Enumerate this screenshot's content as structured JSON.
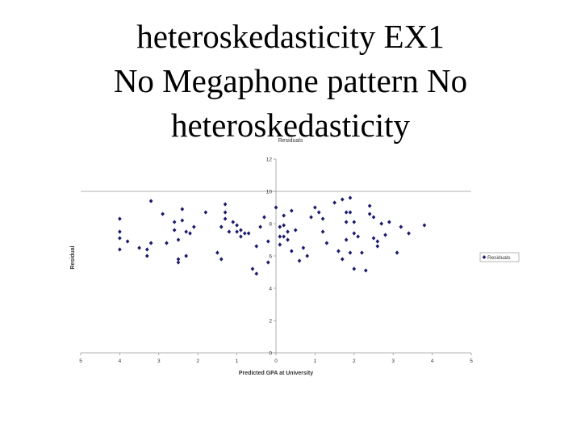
{
  "slide": {
    "title_lines": [
      "heteroskedasticity EX1",
      "No Megaphone pattern No",
      "heteroskedasticity"
    ]
  },
  "chart_data": {
    "type": "scatter",
    "title": "Residuals",
    "xlabel": "Predicted GPA at University",
    "ylabel": "Residual",
    "xlim": [
      -5,
      5
    ],
    "ylim": [
      0,
      12
    ],
    "x_ticks": [
      -5,
      -4,
      -3,
      -2,
      -1,
      0,
      1,
      2,
      3,
      4,
      5
    ],
    "x_tick_labels": [
      "5",
      "4",
      "3",
      "2",
      "1",
      "0",
      "1",
      "2",
      "3",
      "4",
      "5"
    ],
    "y_ticks": [
      0,
      2,
      4,
      6,
      8,
      10,
      12
    ],
    "y_tick_labels": [
      "0",
      "2",
      "4",
      "6",
      "8",
      "10",
      "12"
    ],
    "reference_line_y": 10,
    "grid": false,
    "legend_position": "right",
    "series": [
      {
        "name": "Residuals",
        "color": "#1a1a6e",
        "marker": "diamond",
        "points": [
          [
            -4.0,
            8.3
          ],
          [
            -4.0,
            7.1
          ],
          [
            -3.8,
            6.9
          ],
          [
            -4.0,
            6.4
          ],
          [
            -3.5,
            6.5
          ],
          [
            -3.2,
            6.8
          ],
          [
            -3.3,
            6.4
          ],
          [
            -3.3,
            6.0
          ],
          [
            -3.2,
            9.4
          ],
          [
            -2.9,
            8.6
          ],
          [
            -2.8,
            6.8
          ],
          [
            -2.6,
            8.1
          ],
          [
            -2.6,
            7.6
          ],
          [
            -2.5,
            7.0
          ],
          [
            -2.5,
            5.8
          ],
          [
            -2.5,
            5.6
          ],
          [
            -2.4,
            8.9
          ],
          [
            -2.4,
            8.2
          ],
          [
            -2.3,
            7.5
          ],
          [
            -2.2,
            7.4
          ],
          [
            -2.3,
            6.0
          ],
          [
            -2.1,
            7.8
          ],
          [
            -1.8,
            8.7
          ],
          [
            -1.5,
            6.2
          ],
          [
            -1.4,
            5.8
          ],
          [
            -1.3,
            9.2
          ],
          [
            -1.3,
            8.7
          ],
          [
            -1.3,
            8.3
          ],
          [
            -1.4,
            7.8
          ],
          [
            -1.2,
            7.5
          ],
          [
            -1.1,
            8.1
          ],
          [
            -1.0,
            7.9
          ],
          [
            -1.0,
            7.5
          ],
          [
            -0.9,
            7.6
          ],
          [
            -0.9,
            7.2
          ],
          [
            -0.8,
            7.4
          ],
          [
            -0.7,
            7.4
          ],
          [
            -0.6,
            5.2
          ],
          [
            -0.5,
            6.6
          ],
          [
            -0.5,
            4.9
          ],
          [
            -0.4,
            7.8
          ],
          [
            -0.3,
            8.4
          ],
          [
            -0.2,
            6.9
          ],
          [
            -0.2,
            5.6
          ],
          [
            0.0,
            9.0
          ],
          [
            0.1,
            7.8
          ],
          [
            0.1,
            7.2
          ],
          [
            0.1,
            6.7
          ],
          [
            0.2,
            8.5
          ],
          [
            0.2,
            7.9
          ],
          [
            0.2,
            7.2
          ],
          [
            0.3,
            7.5
          ],
          [
            0.3,
            7.0
          ],
          [
            0.4,
            8.8
          ],
          [
            0.4,
            6.3
          ],
          [
            0.5,
            7.6
          ],
          [
            0.6,
            5.7
          ],
          [
            0.7,
            6.5
          ],
          [
            0.8,
            6.0
          ],
          [
            0.9,
            8.4
          ],
          [
            1.0,
            9.0
          ],
          [
            1.1,
            8.7
          ],
          [
            1.2,
            8.3
          ],
          [
            1.2,
            7.5
          ],
          [
            1.3,
            6.8
          ],
          [
            1.5,
            9.3
          ],
          [
            1.6,
            6.3
          ],
          [
            1.7,
            5.8
          ],
          [
            1.7,
            9.5
          ],
          [
            1.8,
            8.7
          ],
          [
            1.8,
            8.1
          ],
          [
            1.8,
            7.0
          ],
          [
            1.9,
            9.6
          ],
          [
            1.9,
            8.7
          ],
          [
            1.9,
            6.2
          ],
          [
            2.0,
            8.1
          ],
          [
            2.0,
            7.4
          ],
          [
            2.0,
            5.2
          ],
          [
            2.1,
            7.2
          ],
          [
            2.2,
            6.2
          ],
          [
            2.3,
            5.1
          ],
          [
            2.4,
            9.1
          ],
          [
            2.4,
            8.6
          ],
          [
            2.5,
            8.4
          ],
          [
            2.5,
            7.1
          ],
          [
            2.6,
            6.9
          ],
          [
            2.6,
            6.6
          ],
          [
            2.7,
            8.0
          ],
          [
            2.8,
            7.3
          ],
          [
            2.9,
            8.1
          ],
          [
            3.1,
            6.2
          ],
          [
            3.2,
            7.8
          ],
          [
            3.4,
            7.4
          ],
          [
            3.8,
            7.9
          ],
          [
            -4.0,
            7.5
          ]
        ]
      }
    ]
  }
}
